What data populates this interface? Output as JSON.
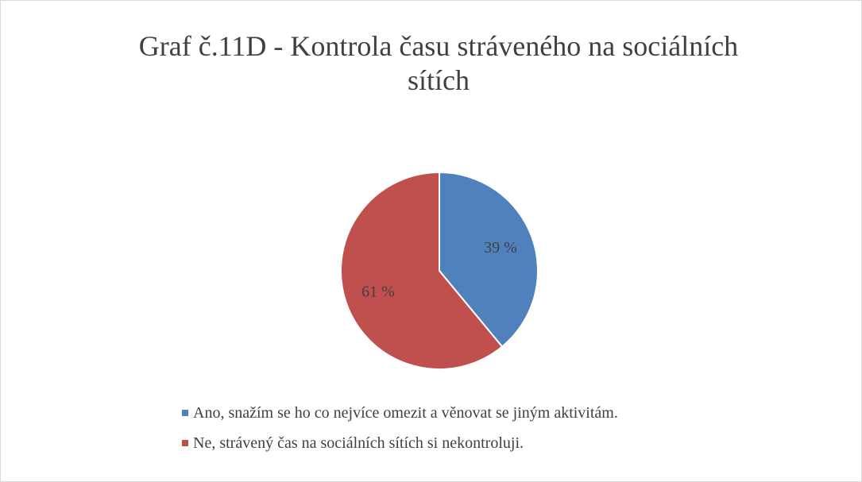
{
  "chart_data": {
    "type": "pie",
    "title": "Graf č.11D - Kontrola času stráveného na sociálních sítích",
    "categories": [
      "Ano, snažím se ho co nejvíce omezit a věnovat se jiným aktivitám.",
      "Ne, strávený čas na sociálních sítích si nekontroluji."
    ],
    "values": [
      39,
      61
    ],
    "value_labels": [
      "39 %",
      "61 %"
    ],
    "colors": [
      "#4f81bd",
      "#c0504d"
    ],
    "legend": "bottom"
  }
}
